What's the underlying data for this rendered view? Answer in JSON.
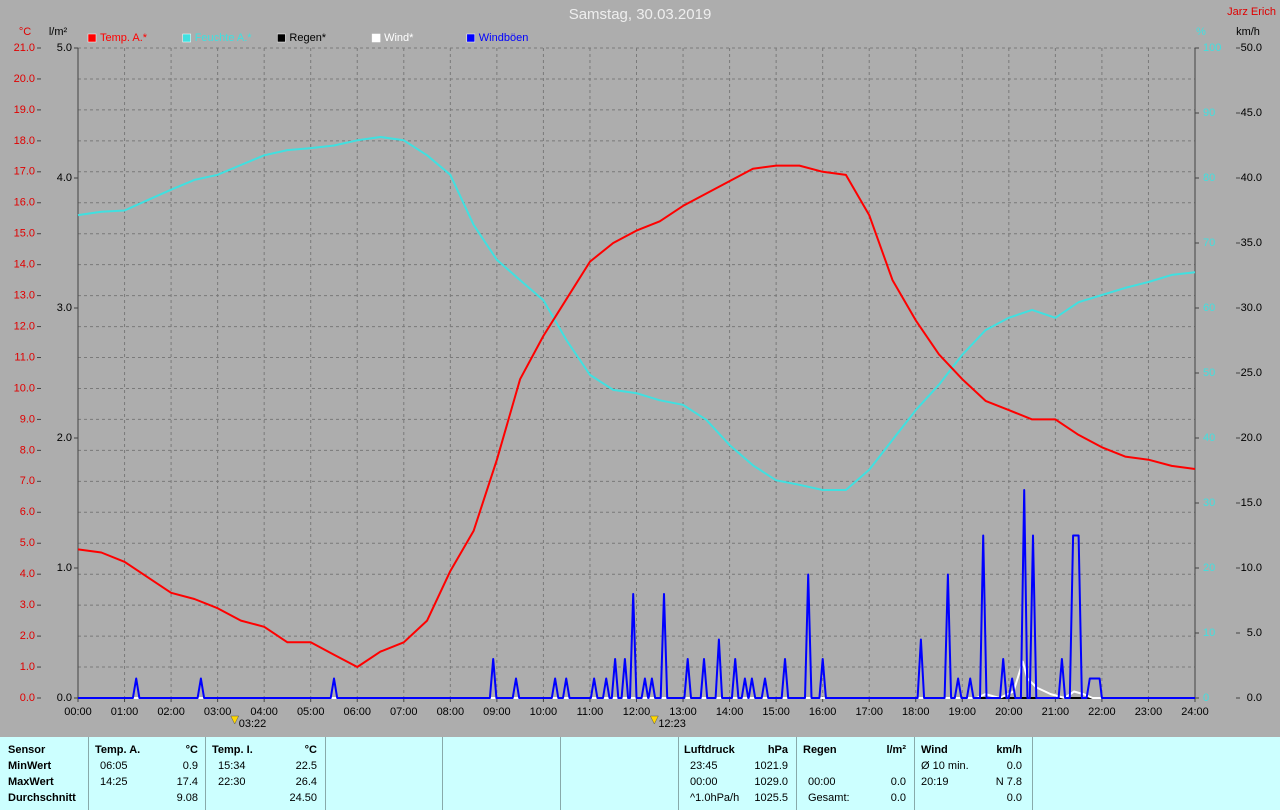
{
  "chart_data": {
    "type": "line",
    "title": "Samstag, 30.03.2019",
    "author": "Jarz Erich",
    "ylabel": "°C",
    "y4label": "l/m²",
    "y2label": "%",
    "y3label": "km/h",
    "xlim": [
      0,
      24
    ],
    "xticks": [
      {
        "value": 0,
        "label": "00:00"
      },
      {
        "value": 1,
        "label": "01:00"
      },
      {
        "value": 2,
        "label": "02:00"
      },
      {
        "value": 3,
        "label": "03:00"
      },
      {
        "value": 4,
        "label": "04:00"
      },
      {
        "value": 5,
        "label": "05:00"
      },
      {
        "value": 6,
        "label": "06:00"
      },
      {
        "value": 7,
        "label": "07:00"
      },
      {
        "value": 8,
        "label": "08:00"
      },
      {
        "value": 9,
        "label": "09:00"
      },
      {
        "value": 10,
        "label": "10:00"
      },
      {
        "value": 11,
        "label": "11:00"
      },
      {
        "value": 12,
        "label": "12:00"
      },
      {
        "value": 13,
        "label": "13:00"
      },
      {
        "value": 14,
        "label": "14:00"
      },
      {
        "value": 15,
        "label": "15:00"
      },
      {
        "value": 16,
        "label": "16:00"
      },
      {
        "value": 17,
        "label": "17:00"
      },
      {
        "value": 18,
        "label": "18:00"
      },
      {
        "value": 19,
        "label": "19:00"
      },
      {
        "value": 20,
        "label": "20:00"
      },
      {
        "value": 21,
        "label": "21:00"
      },
      {
        "value": 22,
        "label": "22:00"
      },
      {
        "value": 23,
        "label": "23:00"
      },
      {
        "value": 24,
        "label": "24:00"
      }
    ],
    "ylim": [
      0,
      21
    ],
    "yticks": [
      {
        "value": 0,
        "label": "0.0"
      },
      {
        "value": 1,
        "label": "1.0"
      },
      {
        "value": 2,
        "label": "2.0"
      },
      {
        "value": 3,
        "label": "3.0"
      },
      {
        "value": 4,
        "label": "4.0"
      },
      {
        "value": 5,
        "label": "5.0"
      },
      {
        "value": 6,
        "label": "6.0"
      },
      {
        "value": 7,
        "label": "7.0"
      },
      {
        "value": 8,
        "label": "8.0"
      },
      {
        "value": 9,
        "label": "9.0"
      },
      {
        "value": 10,
        "label": "10.0"
      },
      {
        "value": 11,
        "label": "11.0"
      },
      {
        "value": 12,
        "label": "12.0"
      },
      {
        "value": 13,
        "label": "13.0"
      },
      {
        "value": 14,
        "label": "14.0"
      },
      {
        "value": 15,
        "label": "15.0"
      },
      {
        "value": 16,
        "label": "16.0"
      },
      {
        "value": 17,
        "label": "17.0"
      },
      {
        "value": 18,
        "label": "18.0"
      },
      {
        "value": 19,
        "label": "19.0"
      },
      {
        "value": 20,
        "label": "20.0"
      },
      {
        "value": 21,
        "label": "21.0"
      }
    ],
    "y4lim": [
      0,
      5
    ],
    "y4ticks": [
      {
        "value": 0,
        "label": "0.0"
      },
      {
        "value": 1,
        "label": "1.0"
      },
      {
        "value": 2,
        "label": "2.0"
      },
      {
        "value": 3,
        "label": "3.0"
      },
      {
        "value": 4,
        "label": "4.0"
      },
      {
        "value": 5,
        "label": "5.0"
      }
    ],
    "y2lim": [
      0,
      100
    ],
    "y2ticks": [
      0,
      10,
      20,
      30,
      40,
      50,
      60,
      70,
      80,
      90,
      100
    ],
    "y3lim": [
      0,
      50
    ],
    "y3ticks": [
      {
        "value": 0,
        "label": "0.0"
      },
      {
        "value": 5,
        "label": "5.0"
      },
      {
        "value": 10,
        "label": "10.0"
      },
      {
        "value": 15,
        "label": "15.0"
      },
      {
        "value": 20,
        "label": "20.0"
      },
      {
        "value": 25,
        "label": "25.0"
      },
      {
        "value": 30,
        "label": "30.0"
      },
      {
        "value": 35,
        "label": "35.0"
      },
      {
        "value": 40,
        "label": "40.0"
      },
      {
        "value": 45,
        "label": "45.0"
      },
      {
        "value": 50,
        "label": "50.0"
      }
    ],
    "grid": true,
    "x": [
      0,
      0.5,
      1,
      1.5,
      2,
      2.5,
      3,
      3.5,
      4,
      4.5,
      5,
      5.5,
      6,
      6.5,
      7,
      7.5,
      8,
      8.5,
      9,
      9.5,
      10,
      10.5,
      11,
      11.5,
      12,
      12.5,
      13,
      13.5,
      14,
      14.5,
      15,
      15.5,
      16,
      16.5,
      17,
      17.5,
      18,
      18.5,
      19,
      19.5,
      20,
      20.5,
      21,
      21.5,
      22,
      22.5,
      23,
      23.5,
      24
    ],
    "series": [
      {
        "name": "Temp. A.*",
        "color": "#ff0000",
        "axis": "y",
        "values": [
          4.8,
          4.7,
          4.4,
          3.9,
          3.4,
          3.2,
          2.9,
          2.5,
          2.3,
          1.8,
          1.8,
          1.4,
          1.0,
          1.5,
          1.8,
          2.5,
          4.1,
          5.4,
          7.7,
          10.3,
          11.7,
          12.9,
          14.1,
          14.7,
          15.1,
          15.4,
          15.9,
          16.3,
          16.7,
          17.1,
          17.2,
          17.2,
          17.0,
          16.9,
          15.6,
          13.5,
          12.2,
          11.1,
          10.3,
          9.6,
          9.3,
          9.0,
          9.0,
          8.5,
          8.1,
          7.8,
          7.7,
          7.5,
          7.4
        ]
      },
      {
        "name": "Feuchte A.*",
        "color": "#40e0e0",
        "axis": "y2",
        "values": [
          74.3,
          74.8,
          75,
          76.6,
          78.2,
          79.7,
          80.5,
          82,
          83.5,
          84.3,
          84.6,
          85,
          85.8,
          86.3,
          85.8,
          83.5,
          80.5,
          72.8,
          67.4,
          64.3,
          61.2,
          55,
          49.7,
          47.4,
          46.9,
          45.8,
          45.1,
          42.8,
          38.9,
          35.8,
          33.5,
          32.8,
          32,
          32,
          35.1,
          39.7,
          44.3,
          48.2,
          52.8,
          56.6,
          58.5,
          59.7,
          58.5,
          60.9,
          62,
          63.1,
          64,
          65.1,
          65.5
        ]
      },
      {
        "name": "Regen*",
        "color": "#000000",
        "axis": "y4",
        "x": [
          0,
          24
        ],
        "values": [
          0,
          0
        ]
      },
      {
        "name": "Wind*",
        "color": "#ffffff",
        "axis": "y3",
        "x": [
          0,
          19.3,
          19.5,
          19.8,
          20.1,
          20.3,
          20.4,
          20.6,
          20.9,
          21.2,
          21.4,
          21.6,
          21.8,
          24
        ],
        "values": [
          0,
          0,
          0.3,
          0,
          0.5,
          2.8,
          1.5,
          0.8,
          0.3,
          0,
          0.5,
          0.3,
          0,
          0
        ]
      },
      {
        "name": "Windböen",
        "color": "#0000ff",
        "axis": "y3",
        "x": [
          0,
          1.18,
          1.25,
          1.32,
          2.57,
          2.64,
          2.71,
          5.43,
          5.5,
          5.57,
          8.85,
          8.92,
          8.99,
          9.34,
          9.41,
          9.48,
          10.18,
          10.25,
          10.32,
          10.42,
          10.49,
          10.56,
          11.02,
          11.09,
          11.16,
          11.28,
          11.35,
          11.42,
          11.47,
          11.54,
          11.61,
          11.68,
          11.75,
          11.82,
          11.86,
          11.93,
          12.0,
          12.11,
          12.18,
          12.25,
          12.26,
          12.33,
          12.4,
          12.52,
          12.59,
          12.66,
          13.03,
          13.1,
          13.17,
          13.38,
          13.45,
          13.52,
          13.7,
          13.77,
          13.84,
          14.05,
          14.12,
          14.19,
          14.26,
          14.33,
          14.4,
          14.41,
          14.48,
          14.55,
          14.69,
          14.76,
          14.83,
          15.12,
          15.19,
          15.26,
          15.62,
          15.69,
          15.76,
          15.93,
          16.0,
          16.07,
          18.04,
          18.11,
          18.18,
          18.62,
          18.69,
          18.76,
          18.84,
          18.91,
          18.98,
          19.1,
          19.17,
          19.24,
          19.38,
          19.45,
          19.52,
          19.81,
          19.88,
          19.95,
          20.0,
          20.07,
          20.14,
          20.26,
          20.33,
          20.4,
          20.45,
          20.52,
          20.59,
          21.07,
          21.14,
          21.21,
          21.31,
          21.38,
          21.5,
          21.57,
          21.67,
          21.74,
          21.95,
          22.0,
          24
        ],
        "values": [
          0,
          0,
          1.5,
          0,
          0,
          1.5,
          0,
          0,
          1.5,
          0,
          0,
          3,
          0,
          0,
          1.5,
          0,
          0,
          1.5,
          0,
          0,
          1.5,
          0,
          0,
          1.5,
          0,
          0,
          1.5,
          0,
          0,
          3,
          0,
          0,
          3,
          0,
          0,
          8,
          0,
          0,
          1.5,
          0,
          0,
          1.5,
          0,
          0,
          8,
          0,
          0,
          3,
          0,
          0,
          3,
          0,
          0,
          4.5,
          0,
          0,
          3,
          0,
          0,
          1.5,
          0,
          0,
          1.5,
          0,
          0,
          1.5,
          0,
          0,
          3,
          0,
          0,
          9.5,
          0,
          0,
          3,
          0,
          0,
          4.5,
          0,
          0,
          9.5,
          0,
          0,
          1.5,
          0,
          0,
          1.5,
          0,
          0,
          12.5,
          0,
          0,
          3,
          0,
          0,
          1.5,
          0,
          0,
          16,
          0,
          0,
          12.5,
          0,
          0,
          3,
          0,
          0,
          12.5,
          12.5,
          0,
          0,
          1.5,
          1.5,
          0,
          0
        ]
      }
    ],
    "annotations": [
      {
        "x": 3.367,
        "label": "03:22"
      },
      {
        "x": 12.383,
        "label": "12:23"
      }
    ]
  },
  "table": {
    "sensor": {
      "header": [
        "Sensor",
        "Temp. A.",
        "°C",
        "Temp. I.",
        "°C"
      ],
      "rows": [
        [
          "MinWert",
          "06:05",
          "0.9",
          "15:34",
          "22.5"
        ],
        [
          "MaxWert",
          "14:25",
          "17.4",
          "22:30",
          "26.4"
        ],
        [
          "Durchschnitt",
          null,
          "9.08",
          null,
          "24.50"
        ]
      ]
    },
    "pressure": {
      "header": [
        "Luftdruck",
        "hPa"
      ],
      "rows": [
        [
          "23:45",
          "1021.9"
        ],
        [
          "00:00",
          "1029.0"
        ],
        [
          "^1.0hPa/h",
          "1025.5"
        ]
      ]
    },
    "rain": {
      "header": [
        "Regen",
        "l/m²"
      ],
      "rows": [
        [
          null,
          null
        ],
        [
          "00:00",
          "0.0"
        ],
        [
          "Gesamt:",
          "0.0"
        ]
      ]
    },
    "wind": {
      "header": [
        "Wind",
        "km/h"
      ],
      "rows": [
        [
          "Ø 10 min.",
          "0.0"
        ],
        [
          "20:19",
          "N 7.8"
        ],
        [
          null,
          "0.0"
        ]
      ]
    }
  }
}
